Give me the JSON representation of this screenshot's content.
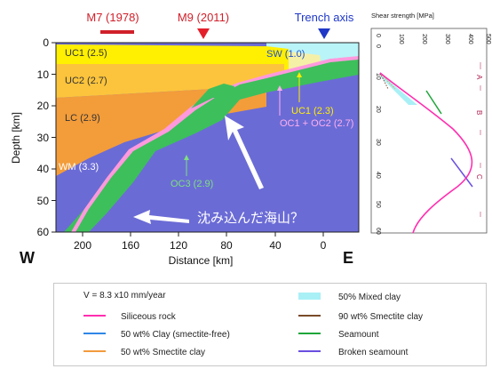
{
  "cross_section": {
    "top_labels": [
      {
        "text": "M7 (1978)",
        "color": "#d0202a",
        "marker": "bar",
        "distance_km": 175
      },
      {
        "text": "M9 (2011)",
        "color": "#d0202a",
        "marker": "red-down-triangle",
        "distance_km": 103
      },
      {
        "text": "Trench axis",
        "color": "#1f38c8",
        "marker": "blue-down-triangle",
        "distance_km": 0
      }
    ],
    "x_axis": {
      "label": "Distance [km]",
      "ticks": [
        "200",
        "160",
        "120",
        "80",
        "40",
        "0"
      ],
      "left_end": "W",
      "right_end": "E"
    },
    "y_axis": {
      "label": "Depth [km]",
      "ticks": [
        "0",
        "10",
        "20",
        "30",
        "40",
        "50",
        "60"
      ]
    },
    "layers": [
      {
        "text": "UC1 (2.5)",
        "color": "#ffef00"
      },
      {
        "text": "UC2 (2.7)",
        "color": "#fcc43c"
      },
      {
        "text": "LC (2.9)",
        "color": "#f39c3a"
      },
      {
        "text": "WM (3.3)",
        "color": "#6b6bd6"
      },
      {
        "text": "SW (1.0)",
        "color": "#b9f4f8"
      },
      {
        "text": "UC1 (2.3)",
        "color": "#f5f0a8"
      },
      {
        "text": "OC1 + OC2 (2.7)",
        "color": "#ff99dd"
      },
      {
        "text": "OC3 (2.9)",
        "color": "#3dbf5c"
      }
    ],
    "annotation": "沈み込んだ海山？"
  },
  "profile": {
    "title": "Shear strength [MPa]",
    "x_ticks": [
      "0",
      "100",
      "200",
      "300",
      "400",
      "500"
    ],
    "y_ticks": [
      "0",
      "10",
      "20",
      "30",
      "40",
      "50",
      "60"
    ],
    "zones": [
      "A",
      "B",
      "C"
    ]
  },
  "legend": {
    "header": "V = 8.3 x10 mm/year",
    "items_left": [
      {
        "label": "Siliceous rock",
        "color": "#ff2fb0"
      },
      {
        "label": "50 wt% Clay (smectite-free)",
        "color": "#2f86e6"
      },
      {
        "label": "50 wt% Smectite clay",
        "color": "#f29b3c"
      }
    ],
    "items_right": [
      {
        "label": "50% Mixed clay",
        "color": "#a9f0f6"
      },
      {
        "label": "90 wt% Smectite clay",
        "color": "#7a4a2a"
      },
      {
        "label": "Seamount",
        "color": "#1fa63a"
      },
      {
        "label": "Broken seamount",
        "color": "#6a4fe0"
      }
    ]
  }
}
